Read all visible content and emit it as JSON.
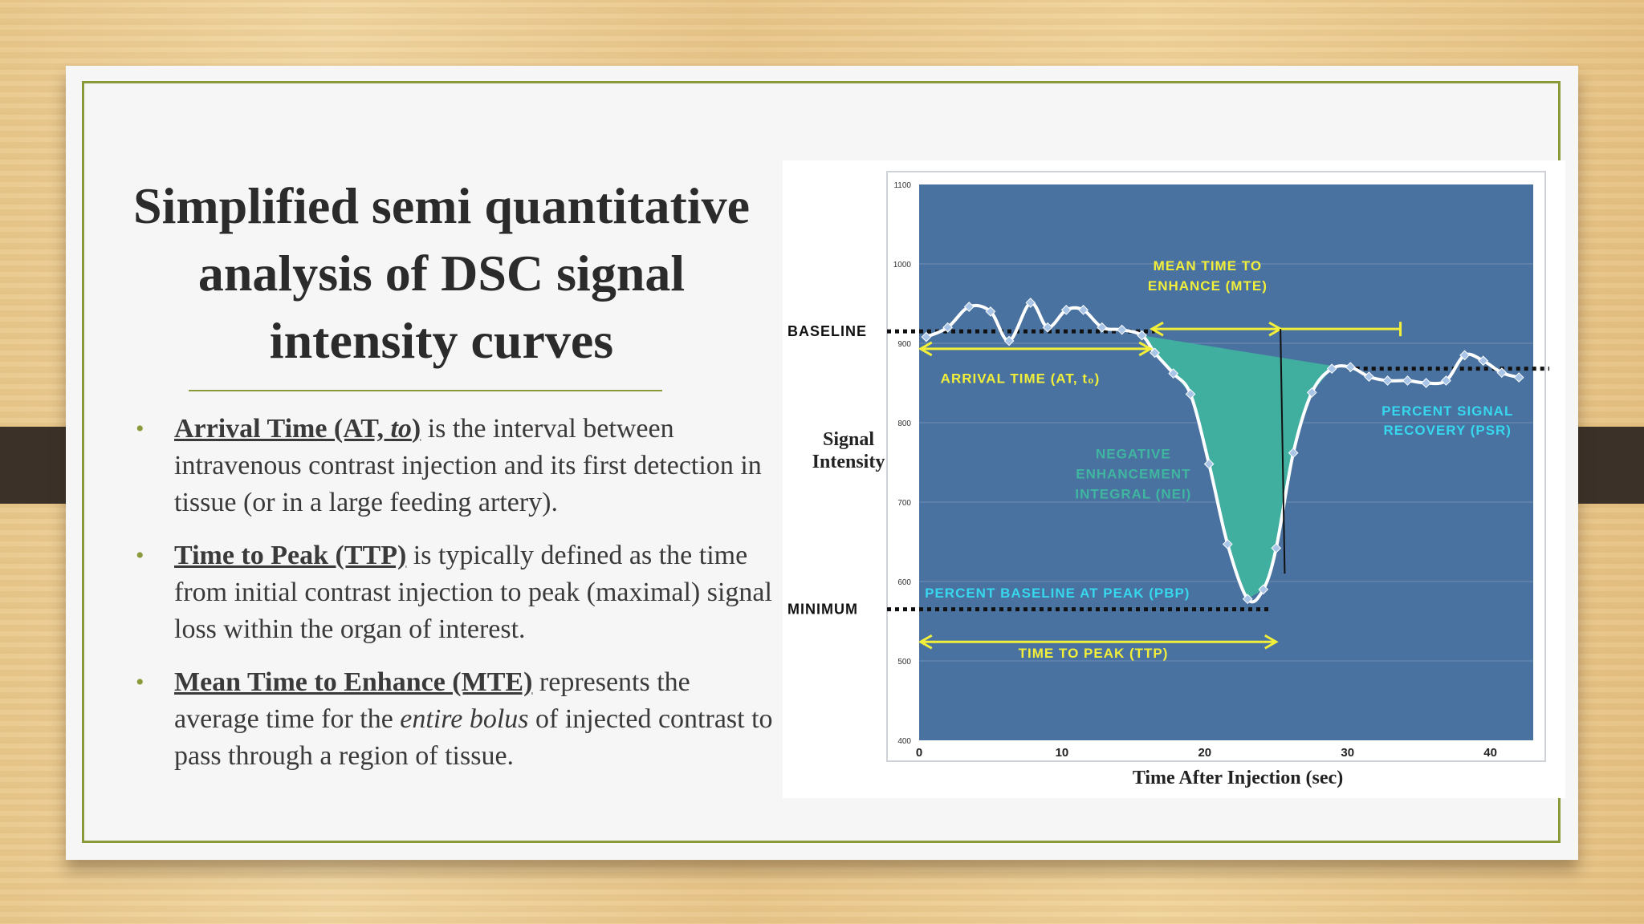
{
  "slide": {
    "title_lines": [
      "Simplified semi quantitative",
      "analysis of DSC signal",
      "intensity curves"
    ],
    "bullets": [
      {
        "term": "Arrival Time (AT, ",
        "term_italic": "to",
        "term_end": ")",
        "pre": "",
        "text": " is the interval between intravenous contrast injection and its first detection in tissue (or in a large feeding artery).",
        "italic": "",
        "post": ""
      },
      {
        "term": "Time to Peak (TTP)",
        "term_italic": "",
        "term_end": "",
        "pre": "",
        "text": " is typically defined as the time from initial contrast injection to peak (maximal) signal loss within the organ of interest.",
        "italic": "",
        "post": ""
      },
      {
        "term": "Mean Time to Enhance (MTE)",
        "term_italic": "",
        "term_end": "",
        "pre": "",
        "text": " represents the average time for the ",
        "italic": "entire bolus",
        "post": " of injected contrast to pass through a region of tissue."
      }
    ],
    "colors": {
      "accent": "#8a9a3a",
      "plot_bg": "#4a72a0",
      "curve": "#ffffff",
      "fill": "#3fb6a0",
      "annotation_yellow": "#f2ef3a",
      "annotation_cyan": "#37d7ee"
    }
  },
  "chart_data": {
    "type": "line",
    "title": "",
    "xlabel": "Time After Injection (sec)",
    "ylabel": "Signal Intensity",
    "xlim": [
      0,
      43
    ],
    "ylim": [
      400,
      1100
    ],
    "xticks": [
      0,
      10,
      20,
      30,
      40
    ],
    "yticks": [
      400,
      500,
      600,
      700,
      800,
      900,
      1000,
      1100
    ],
    "grid": true,
    "series": [
      {
        "x": [
          0.5,
          2,
          3.5,
          5,
          6.3,
          7.8,
          9,
          10.3,
          11.5,
          12.8,
          14.2,
          15.6,
          16.5,
          17.8,
          19,
          20.3,
          21.6,
          23,
          24.1,
          25,
          26.2,
          27.5,
          28.9,
          30.2,
          31.5,
          32.8,
          34.2,
          35.5,
          36.9,
          38.2,
          39.5,
          40.8,
          42
        ],
        "y": [
          908,
          920,
          946,
          940,
          903,
          951,
          920,
          942,
          942,
          920,
          917,
          910,
          888,
          862,
          836,
          748,
          647,
          578,
          590,
          642,
          762,
          838,
          868,
          870,
          858,
          853,
          853,
          850,
          853,
          885,
          878,
          863,
          857
        ]
      }
    ],
    "reference_lines": {
      "baseline_label": "Baseline",
      "minimum_label": "Minimum"
    },
    "annotations": [
      {
        "label": "Mean Time to Enhance (MTE)",
        "color": "yellow"
      },
      {
        "label": "Arrival Time (AT, t₀)",
        "color": "yellow"
      },
      {
        "label": "Negative Enhancement Integral (NEI)",
        "color": "teal"
      },
      {
        "label": "Percent Signal Recovery (PSR)",
        "color": "cyan"
      },
      {
        "label": "Percent baseline at Peak (PBP)",
        "color": "cyan"
      },
      {
        "label": "Time to Peak (TTP)",
        "color": "yellow"
      }
    ]
  }
}
